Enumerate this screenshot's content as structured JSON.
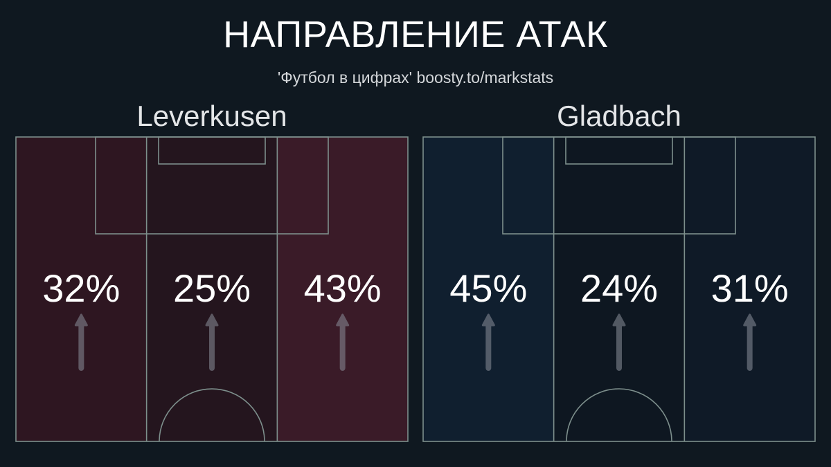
{
  "title": "НАПРАВЛЕНИЕ АТАК",
  "subtitle": "'Футбол в цифрах' boosty.to/markstats",
  "colors": {
    "background": "#0f1820",
    "pitch_lines": "#7d8f8c",
    "arrow": "#8a8f9a"
  },
  "chart_data": [
    {
      "type": "pitch-zones",
      "team": "Leverkusen",
      "categories": [
        "left",
        "center",
        "right"
      ],
      "values": [
        32,
        25,
        43
      ],
      "labels": [
        "32%",
        "25%",
        "43%"
      ],
      "zone_colors": [
        "#2e1621",
        "#24151e",
        "#3a1b28"
      ]
    },
    {
      "type": "pitch-zones",
      "team": "Gladbach",
      "categories": [
        "left",
        "center",
        "right"
      ],
      "values": [
        45,
        24,
        31
      ],
      "labels": [
        "45%",
        "24%",
        "31%"
      ],
      "zone_colors": [
        "#101f2f",
        "#0e1721",
        "#0f1a27"
      ]
    }
  ]
}
